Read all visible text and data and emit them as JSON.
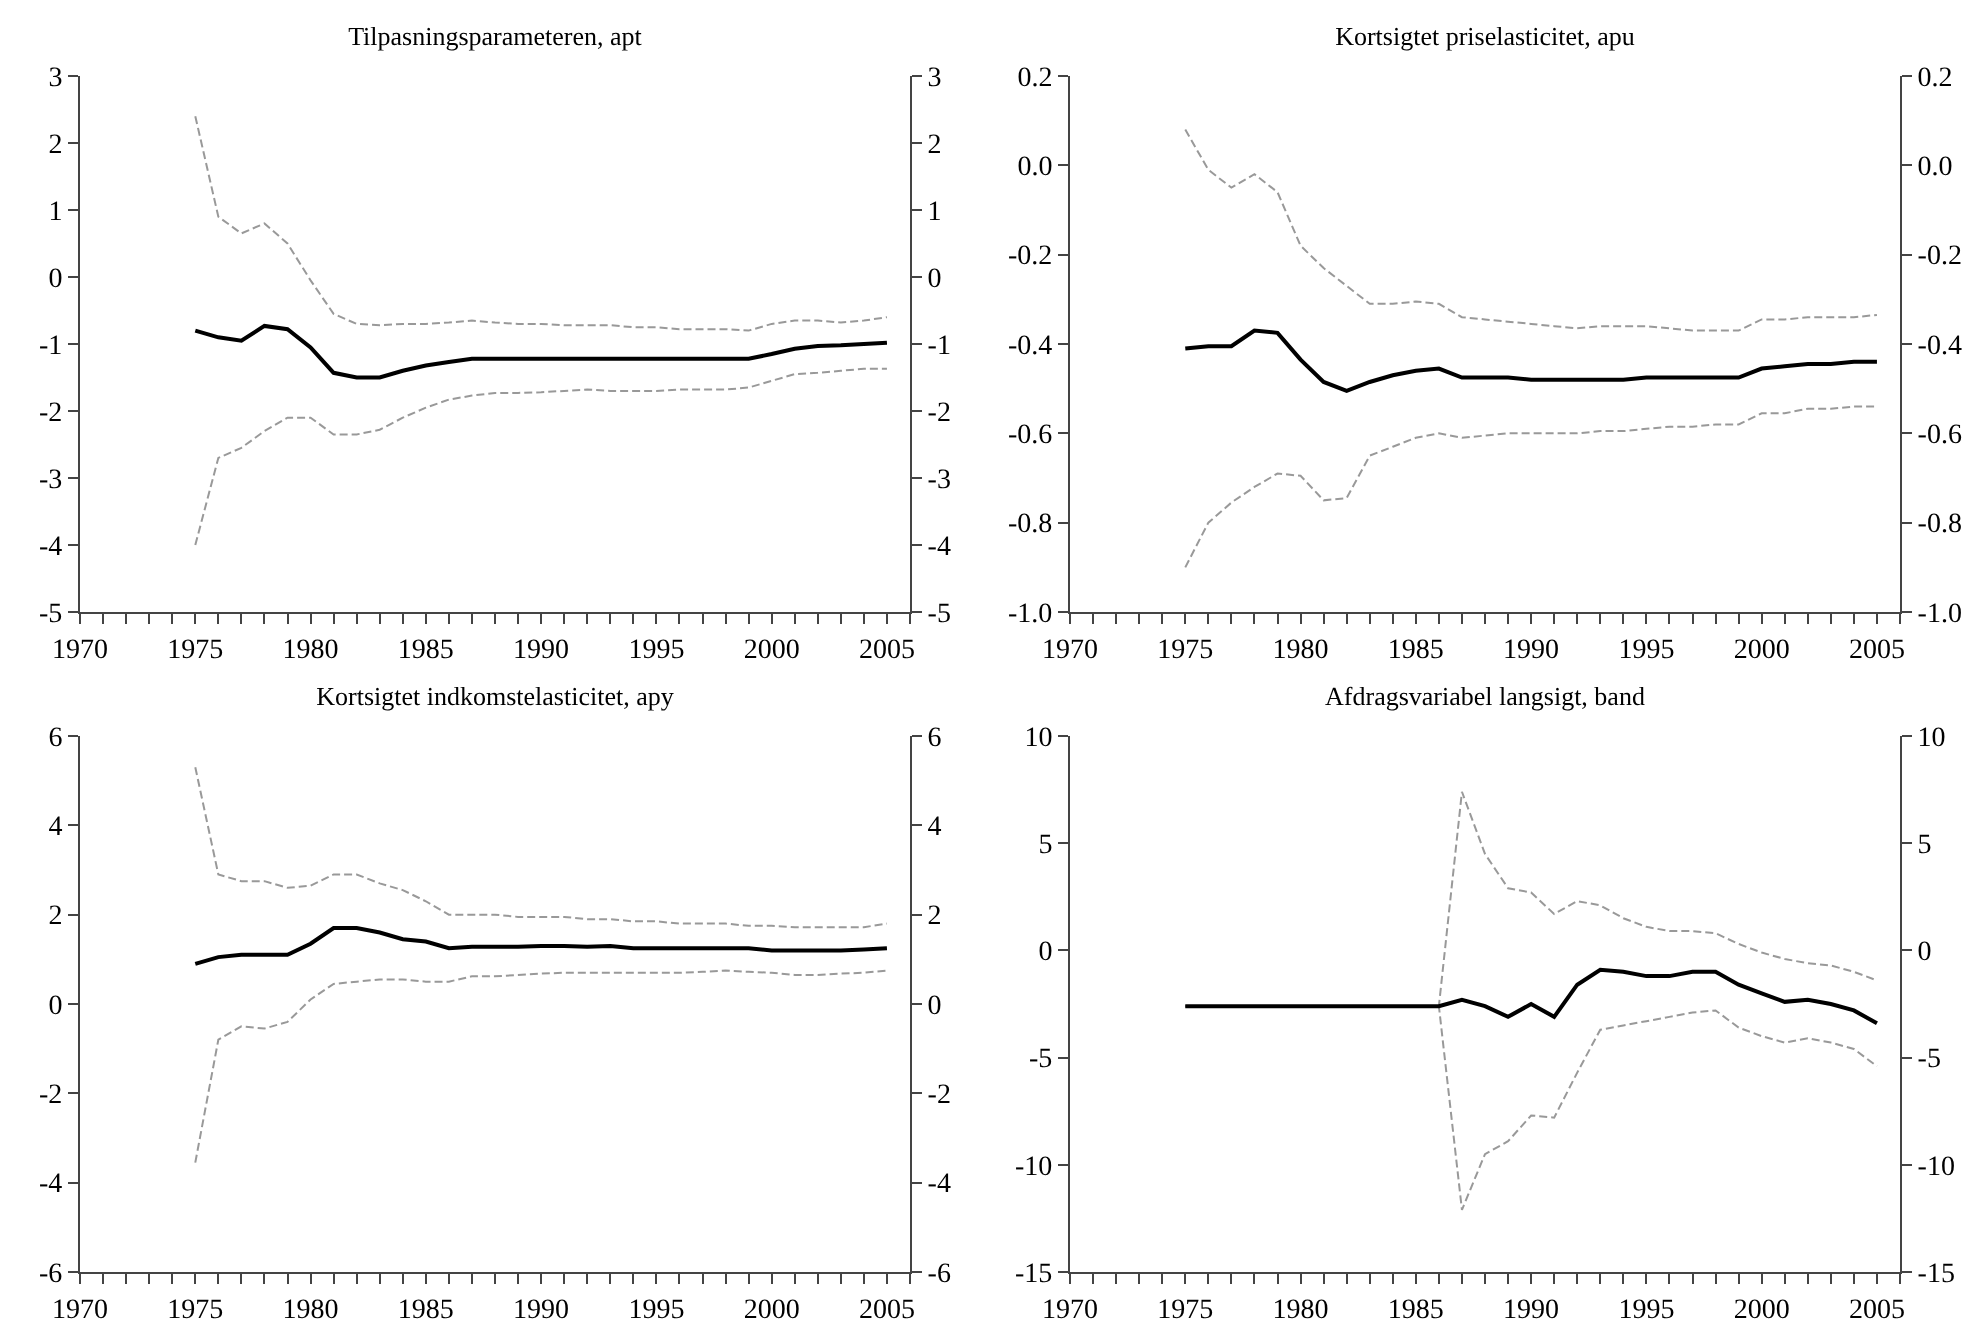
{
  "chart_data": [
    {
      "type": "line",
      "title": "Tilpasningsparameteren, apt",
      "x": [
        1975,
        1976,
        1977,
        1978,
        1979,
        1980,
        1981,
        1982,
        1983,
        1984,
        1985,
        1986,
        1987,
        1988,
        1989,
        1990,
        1991,
        1992,
        1993,
        1994,
        1995,
        1996,
        1997,
        1998,
        1999,
        2000,
        2001,
        2002,
        2003,
        2004,
        2005
      ],
      "series": [
        {
          "color": "#999999",
          "line_style": "dashed",
          "values": [
            2.4,
            0.9,
            0.65,
            0.8,
            0.5,
            -0.05,
            -0.55,
            -0.7,
            -0.72,
            -0.7,
            -0.7,
            -0.68,
            -0.65,
            -0.68,
            -0.7,
            -0.7,
            -0.72,
            -0.72,
            -0.72,
            -0.75,
            -0.75,
            -0.78,
            -0.78,
            -0.78,
            -0.8,
            -0.7,
            -0.65,
            -0.65,
            -0.68,
            -0.65,
            -0.6
          ]
        },
        {
          "color": "#000000",
          "line_style": "solid",
          "values": [
            -0.8,
            -0.9,
            -0.95,
            -0.73,
            -0.78,
            -1.05,
            -1.43,
            -1.5,
            -1.5,
            -1.4,
            -1.32,
            -1.27,
            -1.22,
            -1.22,
            -1.22,
            -1.22,
            -1.22,
            -1.22,
            -1.22,
            -1.22,
            -1.22,
            -1.22,
            -1.22,
            -1.22,
            -1.22,
            -1.15,
            -1.07,
            -1.03,
            -1.02,
            -1.0,
            -0.98
          ]
        },
        {
          "color": "#999999",
          "line_style": "dashed",
          "values": [
            -4.0,
            -2.7,
            -2.55,
            -2.3,
            -2.1,
            -2.1,
            -2.35,
            -2.35,
            -2.28,
            -2.1,
            -1.95,
            -1.83,
            -1.77,
            -1.73,
            -1.73,
            -1.72,
            -1.7,
            -1.68,
            -1.7,
            -1.7,
            -1.7,
            -1.68,
            -1.68,
            -1.68,
            -1.65,
            -1.55,
            -1.45,
            -1.43,
            -1.4,
            -1.37,
            -1.37
          ]
        }
      ],
      "xlim": [
        1970,
        2006
      ],
      "xticks": [
        1970,
        {
          "value": 1971,
          "label": null
        },
        {
          "value": 1972,
          "label": null
        },
        {
          "value": 1973,
          "label": null
        },
        {
          "value": 1974,
          "label": null
        },
        1975,
        {
          "value": 1976,
          "label": null
        },
        {
          "value": 1977,
          "label": null
        },
        {
          "value": 1978,
          "label": null
        },
        {
          "value": 1979,
          "label": null
        },
        1980,
        {
          "value": 1981,
          "label": null
        },
        {
          "value": 1982,
          "label": null
        },
        {
          "value": 1983,
          "label": null
        },
        {
          "value": 1984,
          "label": null
        },
        1985,
        {
          "value": 1986,
          "label": null
        },
        {
          "value": 1987,
          "label": null
        },
        {
          "value": 1988,
          "label": null
        },
        {
          "value": 1989,
          "label": null
        },
        1990,
        {
          "value": 1991,
          "label": null
        },
        {
          "value": 1992,
          "label": null
        },
        {
          "value": 1993,
          "label": null
        },
        {
          "value": 1994,
          "label": null
        },
        1995,
        {
          "value": 1996,
          "label": null
        },
        {
          "value": 1997,
          "label": null
        },
        {
          "value": 1998,
          "label": null
        },
        {
          "value": 1999,
          "label": null
        },
        2000,
        {
          "value": 2001,
          "label": null
        },
        {
          "value": 2002,
          "label": null
        },
        {
          "value": 2003,
          "label": null
        },
        {
          "value": 2004,
          "label": null
        },
        2005,
        {
          "value": 2006,
          "label": null
        }
      ],
      "ylim": [
        -5,
        3
      ],
      "yticks": [
        -5,
        -4,
        -3,
        -2,
        -1,
        0,
        1,
        2,
        3
      ],
      "y2lim": [
        -5,
        3
      ],
      "y2ticks": [
        -5,
        -4,
        -3,
        -2,
        -1,
        0,
        1,
        2,
        3
      ]
    },
    {
      "type": "line",
      "title": "Kortsigtet priselasticitet, apu",
      "x": [
        1975,
        1976,
        1977,
        1978,
        1979,
        1980,
        1981,
        1982,
        1983,
        1984,
        1985,
        1986,
        1987,
        1988,
        1989,
        1990,
        1991,
        1992,
        1993,
        1994,
        1995,
        1996,
        1997,
        1998,
        1999,
        2000,
        2001,
        2002,
        2003,
        2004,
        2005
      ],
      "series": [
        {
          "color": "#999999",
          "line_style": "dashed",
          "values": [
            0.08,
            -0.01,
            -0.05,
            -0.02,
            -0.06,
            -0.18,
            -0.23,
            -0.27,
            -0.31,
            -0.31,
            -0.305,
            -0.31,
            -0.34,
            -0.345,
            -0.35,
            -0.355,
            -0.36,
            -0.365,
            -0.36,
            -0.36,
            -0.36,
            -0.365,
            -0.37,
            -0.37,
            -0.37,
            -0.345,
            -0.345,
            -0.34,
            -0.34,
            -0.34,
            -0.335
          ]
        },
        {
          "color": "#000000",
          "line_style": "solid",
          "values": [
            -0.41,
            -0.405,
            -0.405,
            -0.37,
            -0.375,
            -0.435,
            -0.485,
            -0.505,
            -0.485,
            -0.47,
            -0.46,
            -0.455,
            -0.475,
            -0.475,
            -0.475,
            -0.48,
            -0.48,
            -0.48,
            -0.48,
            -0.48,
            -0.475,
            -0.475,
            -0.475,
            -0.475,
            -0.475,
            -0.455,
            -0.45,
            -0.445,
            -0.445,
            -0.44,
            -0.44
          ]
        },
        {
          "color": "#999999",
          "line_style": "dashed",
          "values": [
            -0.9,
            -0.8,
            -0.755,
            -0.72,
            -0.69,
            -0.695,
            -0.75,
            -0.745,
            -0.65,
            -0.63,
            -0.61,
            -0.6,
            -0.61,
            -0.605,
            -0.6,
            -0.6,
            -0.6,
            -0.6,
            -0.595,
            -0.595,
            -0.59,
            -0.585,
            -0.585,
            -0.58,
            -0.58,
            -0.555,
            -0.555,
            -0.545,
            -0.545,
            -0.54,
            -0.54
          ]
        }
      ],
      "xlim": [
        1970,
        2006
      ],
      "xticks": [
        1970,
        {
          "value": 1971,
          "label": null
        },
        {
          "value": 1972,
          "label": null
        },
        {
          "value": 1973,
          "label": null
        },
        {
          "value": 1974,
          "label": null
        },
        1975,
        {
          "value": 1976,
          "label": null
        },
        {
          "value": 1977,
          "label": null
        },
        {
          "value": 1978,
          "label": null
        },
        {
          "value": 1979,
          "label": null
        },
        1980,
        {
          "value": 1981,
          "label": null
        },
        {
          "value": 1982,
          "label": null
        },
        {
          "value": 1983,
          "label": null
        },
        {
          "value": 1984,
          "label": null
        },
        1985,
        {
          "value": 1986,
          "label": null
        },
        {
          "value": 1987,
          "label": null
        },
        {
          "value": 1988,
          "label": null
        },
        {
          "value": 1989,
          "label": null
        },
        1990,
        {
          "value": 1991,
          "label": null
        },
        {
          "value": 1992,
          "label": null
        },
        {
          "value": 1993,
          "label": null
        },
        {
          "value": 1994,
          "label": null
        },
        1995,
        {
          "value": 1996,
          "label": null
        },
        {
          "value": 1997,
          "label": null
        },
        {
          "value": 1998,
          "label": null
        },
        {
          "value": 1999,
          "label": null
        },
        2000,
        {
          "value": 2001,
          "label": null
        },
        {
          "value": 2002,
          "label": null
        },
        {
          "value": 2003,
          "label": null
        },
        {
          "value": 2004,
          "label": null
        },
        2005,
        {
          "value": 2006,
          "label": null
        }
      ],
      "ylim": [
        -1,
        0.2
      ],
      "yticks": [
        {
          "value": -1,
          "label": "-1.0"
        },
        -0.8,
        -0.6,
        -0.4,
        -0.2,
        {
          "value": 0,
          "label": "0.0"
        },
        0.2
      ],
      "y2lim": [
        -1,
        0.2
      ],
      "y2ticks": [
        {
          "value": -1,
          "label": "-1.0"
        },
        -0.8,
        -0.6,
        -0.4,
        -0.2,
        {
          "value": 0,
          "label": "0.0"
        },
        0.2
      ]
    },
    {
      "type": "line",
      "title": "Kortsigtet indkomstelasticitet, apy",
      "x": [
        1975,
        1976,
        1977,
        1978,
        1979,
        1980,
        1981,
        1982,
        1983,
        1984,
        1985,
        1986,
        1987,
        1988,
        1989,
        1990,
        1991,
        1992,
        1993,
        1994,
        1995,
        1996,
        1997,
        1998,
        1999,
        2000,
        2001,
        2002,
        2003,
        2004,
        2005
      ],
      "series": [
        {
          "color": "#999999",
          "line_style": "dashed",
          "values": [
            5.3,
            2.9,
            2.75,
            2.75,
            2.6,
            2.65,
            2.9,
            2.9,
            2.7,
            2.55,
            2.3,
            2.0,
            2.0,
            2.0,
            1.95,
            1.95,
            1.95,
            1.9,
            1.9,
            1.85,
            1.85,
            1.8,
            1.8,
            1.8,
            1.75,
            1.75,
            1.72,
            1.72,
            1.72,
            1.72,
            1.8
          ]
        },
        {
          "color": "#000000",
          "line_style": "solid",
          "values": [
            0.9,
            1.05,
            1.1,
            1.1,
            1.1,
            1.35,
            1.7,
            1.7,
            1.6,
            1.45,
            1.4,
            1.25,
            1.28,
            1.28,
            1.28,
            1.3,
            1.3,
            1.28,
            1.3,
            1.25,
            1.25,
            1.25,
            1.25,
            1.25,
            1.25,
            1.2,
            1.2,
            1.2,
            1.2,
            1.22,
            1.25
          ]
        },
        {
          "color": "#999999",
          "line_style": "dashed",
          "values": [
            -3.55,
            -0.8,
            -0.5,
            -0.55,
            -0.4,
            0.1,
            0.45,
            0.5,
            0.55,
            0.55,
            0.5,
            0.5,
            0.62,
            0.62,
            0.65,
            0.68,
            0.7,
            0.7,
            0.7,
            0.7,
            0.7,
            0.7,
            0.72,
            0.75,
            0.72,
            0.7,
            0.65,
            0.65,
            0.68,
            0.7,
            0.75
          ]
        }
      ],
      "xlim": [
        1970,
        2006
      ],
      "xticks": [
        1970,
        {
          "value": 1971,
          "label": null
        },
        {
          "value": 1972,
          "label": null
        },
        {
          "value": 1973,
          "label": null
        },
        {
          "value": 1974,
          "label": null
        },
        1975,
        {
          "value": 1976,
          "label": null
        },
        {
          "value": 1977,
          "label": null
        },
        {
          "value": 1978,
          "label": null
        },
        {
          "value": 1979,
          "label": null
        },
        1980,
        {
          "value": 1981,
          "label": null
        },
        {
          "value": 1982,
          "label": null
        },
        {
          "value": 1983,
          "label": null
        },
        {
          "value": 1984,
          "label": null
        },
        1985,
        {
          "value": 1986,
          "label": null
        },
        {
          "value": 1987,
          "label": null
        },
        {
          "value": 1988,
          "label": null
        },
        {
          "value": 1989,
          "label": null
        },
        1990,
        {
          "value": 1991,
          "label": null
        },
        {
          "value": 1992,
          "label": null
        },
        {
          "value": 1993,
          "label": null
        },
        {
          "value": 1994,
          "label": null
        },
        1995,
        {
          "value": 1996,
          "label": null
        },
        {
          "value": 1997,
          "label": null
        },
        {
          "value": 1998,
          "label": null
        },
        {
          "value": 1999,
          "label": null
        },
        2000,
        {
          "value": 2001,
          "label": null
        },
        {
          "value": 2002,
          "label": null
        },
        {
          "value": 2003,
          "label": null
        },
        {
          "value": 2004,
          "label": null
        },
        2005,
        {
          "value": 2006,
          "label": null
        }
      ],
      "ylim": [
        -6,
        6
      ],
      "yticks": [
        -6,
        -4,
        -2,
        0,
        2,
        4,
        6
      ],
      "y2lim": [
        -6,
        6
      ],
      "y2ticks": [
        -6,
        -4,
        -2,
        0,
        2,
        4,
        6
      ]
    },
    {
      "type": "line",
      "title": "Afdragsvariabel langsigt, band",
      "x": [
        1975,
        1976,
        1977,
        1978,
        1979,
        1980,
        1981,
        1982,
        1983,
        1984,
        1985,
        1986,
        1987,
        1988,
        1989,
        1990,
        1991,
        1992,
        1993,
        1994,
        1995,
        1996,
        1997,
        1998,
        1999,
        2000,
        2001,
        2002,
        2003,
        2004,
        2005
      ],
      "series": [
        {
          "color": "#999999",
          "line_style": "dashed",
          "values": [
            -2.6,
            -2.6,
            -2.6,
            -2.6,
            -2.6,
            -2.6,
            -2.6,
            -2.6,
            -2.6,
            -2.6,
            -2.6,
            -2.6,
            7.4,
            4.5,
            2.9,
            2.7,
            1.7,
            2.3,
            2.1,
            1.5,
            1.1,
            0.9,
            0.9,
            0.8,
            0.3,
            -0.1,
            -0.4,
            -0.6,
            -0.7,
            -1.0,
            -1.4
          ]
        },
        {
          "color": "#999999",
          "line_style": "dashed",
          "values": [
            -2.6,
            -2.6,
            -2.6,
            -2.6,
            -2.6,
            -2.6,
            -2.6,
            -2.6,
            -2.6,
            -2.6,
            -2.6,
            -2.6,
            -12.1,
            -9.5,
            -8.9,
            -7.7,
            -7.8,
            -5.7,
            -3.7,
            -3.5,
            -3.3,
            -3.1,
            -2.9,
            -2.8,
            -3.6,
            -4.0,
            -4.3,
            -4.1,
            -4.3,
            -4.6,
            -5.4
          ]
        },
        {
          "color": "#000000",
          "line_style": "solid",
          "values": [
            -2.6,
            -2.6,
            -2.6,
            -2.6,
            -2.6,
            -2.6,
            -2.6,
            -2.6,
            -2.6,
            -2.6,
            -2.6,
            -2.6,
            -2.3,
            -2.6,
            -3.1,
            -2.5,
            -3.1,
            -1.6,
            -0.9,
            -1.0,
            -1.2,
            -1.2,
            -1.0,
            -1.0,
            -1.6,
            -2.0,
            -2.4,
            -2.3,
            -2.5,
            -2.8,
            -3.4
          ]
        }
      ],
      "xlim": [
        1970,
        2006
      ],
      "xticks": [
        1970,
        {
          "value": 1971,
          "label": null
        },
        {
          "value": 1972,
          "label": null
        },
        {
          "value": 1973,
          "label": null
        },
        {
          "value": 1974,
          "label": null
        },
        1975,
        {
          "value": 1976,
          "label": null
        },
        {
          "value": 1977,
          "label": null
        },
        {
          "value": 1978,
          "label": null
        },
        {
          "value": 1979,
          "label": null
        },
        1980,
        {
          "value": 1981,
          "label": null
        },
        {
          "value": 1982,
          "label": null
        },
        {
          "value": 1983,
          "label": null
        },
        {
          "value": 1984,
          "label": null
        },
        1985,
        {
          "value": 1986,
          "label": null
        },
        {
          "value": 1987,
          "label": null
        },
        {
          "value": 1988,
          "label": null
        },
        {
          "value": 1989,
          "label": null
        },
        1990,
        {
          "value": 1991,
          "label": null
        },
        {
          "value": 1992,
          "label": null
        },
        {
          "value": 1993,
          "label": null
        },
        {
          "value": 1994,
          "label": null
        },
        1995,
        {
          "value": 1996,
          "label": null
        },
        {
          "value": 1997,
          "label": null
        },
        {
          "value": 1998,
          "label": null
        },
        {
          "value": 1999,
          "label": null
        },
        2000,
        {
          "value": 2001,
          "label": null
        },
        {
          "value": 2002,
          "label": null
        },
        {
          "value": 2003,
          "label": null
        },
        {
          "value": 2004,
          "label": null
        },
        2005,
        {
          "value": 2006,
          "label": null
        }
      ],
      "ylim": [
        -15,
        10
      ],
      "yticks": [
        -15,
        -10,
        -5,
        0,
        5,
        10
      ],
      "y2lim": [
        -15,
        10
      ],
      "y2ticks": [
        -15,
        -10,
        -5,
        0,
        5,
        10
      ]
    }
  ]
}
